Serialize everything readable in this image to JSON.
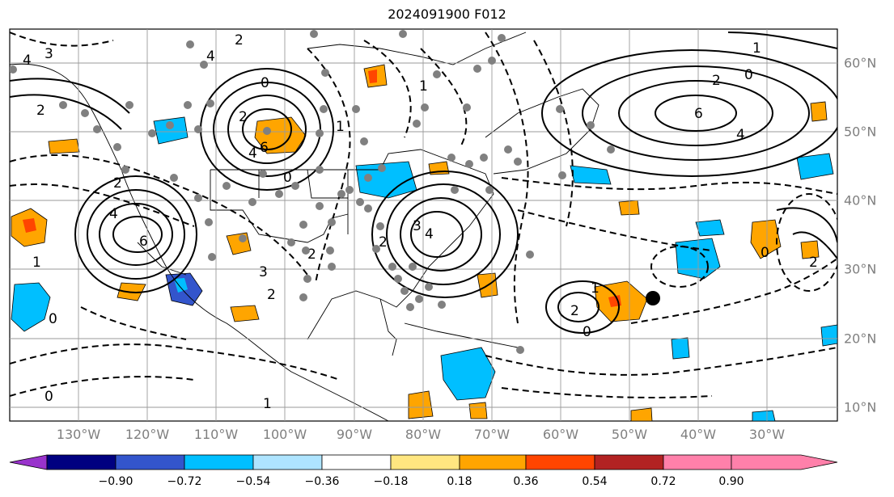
{
  "title": "2024091900 F012",
  "map": {
    "longitude_labels": [
      "130°W",
      "120°W",
      "110°W",
      "100°W",
      "90°W",
      "80°W",
      "70°W",
      "60°W",
      "50°W",
      "40°W",
      "30°W"
    ],
    "latitude_labels": [
      "60°N",
      "50°N",
      "40°N",
      "30°N",
      "20°N",
      "10°N"
    ],
    "contour_labels": [
      "4",
      "3",
      "2",
      "1",
      "0",
      "2",
      "4",
      "6",
      "4",
      "2",
      "0",
      "2",
      "4",
      "6",
      "3",
      "2",
      "1",
      "2",
      "0",
      "1",
      "2",
      "3",
      "4",
      "6",
      "4",
      "2",
      "1",
      "0",
      "2",
      "1",
      "0",
      "2",
      "0",
      "0",
      "1"
    ]
  },
  "colorbar": {
    "ticks": [
      "−0.90",
      "−0.72",
      "−0.54",
      "−0.36",
      "−0.18",
      "0.18",
      "0.36",
      "0.54",
      "0.72",
      "0.90"
    ],
    "colors": [
      "#9933cc",
      "#000080",
      "#3355cc",
      "#00bfff",
      "#aee4ff",
      "#ffffff",
      "#ffe680",
      "#ffa500",
      "#ff4500",
      "#b22222",
      "#ff80aa"
    ]
  }
}
